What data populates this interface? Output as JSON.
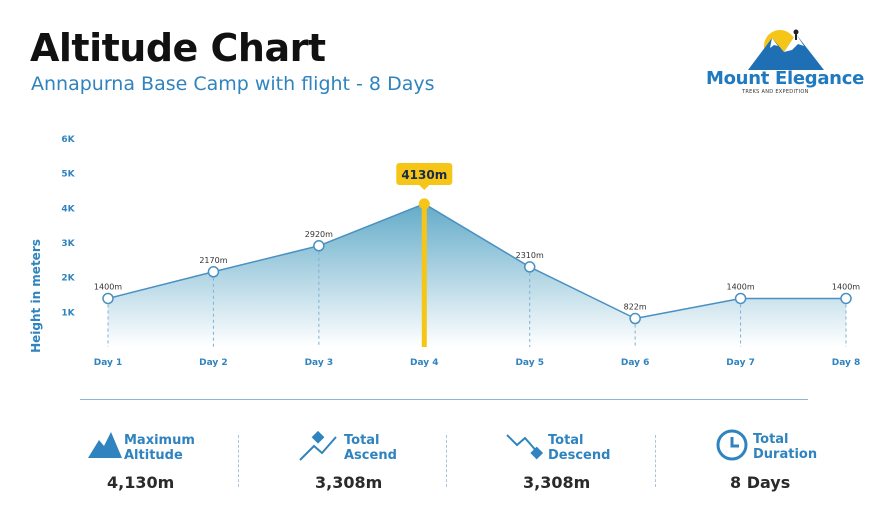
{
  "header": {
    "title": "Altitude Chart",
    "subtitle": "Annapurna Base Camp with flight - 8 Days"
  },
  "logo": {
    "name": "Mount Elegance",
    "tagline": "TREKS AND EXPEDITION"
  },
  "colors": {
    "accent": "#2f83be",
    "highlight": "#f5c518",
    "line": "#4a90c2"
  },
  "chart_data": {
    "type": "area",
    "ylabel": "Height in meters",
    "xlabel": "",
    "categories": [
      "Day 1",
      "Day 2",
      "Day 3",
      "Day 4",
      "Day 5",
      "Day 6",
      "Day 7",
      "Day 8"
    ],
    "values": [
      1400,
      2170,
      2920,
      4130,
      2310,
      822,
      1400,
      1400
    ],
    "data_labels": [
      "1400m",
      "2170m",
      "2920m",
      "4130m",
      "2310m",
      "822m",
      "1400m",
      "1400m"
    ],
    "highlight_index": 3,
    "highlight_label": "4130m",
    "yticks": [
      1000,
      2000,
      3000,
      4000,
      5000,
      6000
    ],
    "ytick_labels": [
      "1K",
      "2K",
      "3K",
      "4K",
      "5K",
      "6K"
    ],
    "ylim": [
      0,
      6000
    ],
    "grid": false
  },
  "stats": [
    {
      "label_line1": "Maximum",
      "label_line2": "Altitude",
      "value": "4,130m",
      "icon": "mountain-icon"
    },
    {
      "label_line1": "Total",
      "label_line2": "Ascend",
      "value": "3,308m",
      "icon": "ascend-icon"
    },
    {
      "label_line1": "Total",
      "label_line2": "Descend",
      "value": "3,308m",
      "icon": "descend-icon"
    },
    {
      "label_line1": "Total",
      "label_line2": "Duration",
      "value": "8 Days",
      "icon": "clock-icon"
    }
  ]
}
